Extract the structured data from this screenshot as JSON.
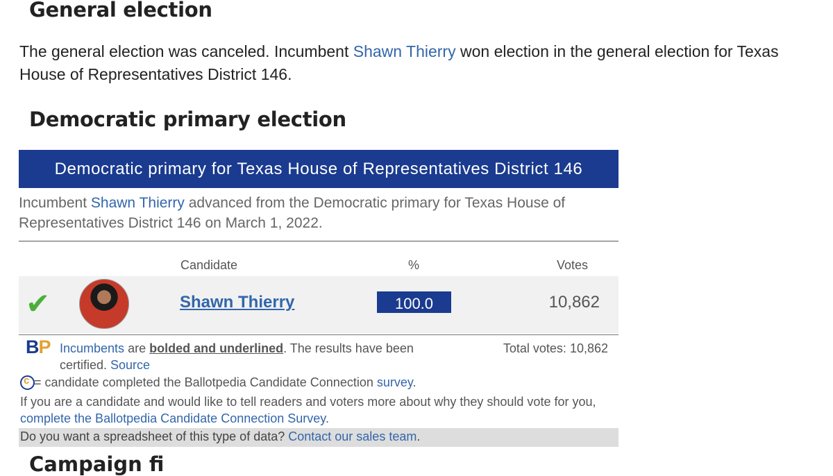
{
  "general": {
    "title": "General election",
    "text_before": "The general election was canceled. Incumbent ",
    "link": "Shawn Thierry",
    "text_after": " won election in the general election for Texas House of Representatives District 146."
  },
  "primary": {
    "title": "Democratic primary election",
    "banner": "Democratic primary for Texas House of Representatives District 146",
    "summary_before": "Incumbent ",
    "summary_link": "Shawn Thierry",
    "summary_after": " advanced from the Democratic primary for Texas House of Representatives District 146 on March 1, 2022.",
    "columns": {
      "candidate": "Candidate",
      "percent": "%",
      "votes": "Votes"
    },
    "candidate": {
      "name": "Shawn Thierry",
      "percent": "100.0",
      "percent_value": 100,
      "votes": "10,862",
      "winner_mark": "✔"
    },
    "footer": {
      "logo_b": "B",
      "logo_p": "P",
      "incumbents_link": "Incumbents",
      "are": " are ",
      "bolded": "bolded and underlined",
      "certified": ". The results have been certified. ",
      "source_link": "Source",
      "total_votes": "Total votes: 10,862",
      "cc_text": " = candidate completed the Ballotpedia Candidate Connection ",
      "survey_link": "survey",
      "cc_period": ".",
      "tell_text": "If you are a candidate and would like to tell readers and voters more about why they should vote for you, ",
      "complete_link": "complete the Ballotpedia Candidate Connection Survey",
      "tell_period": ".",
      "spreadsheet_text": "Do you want a spreadsheet of this type of data? ",
      "contact_link": "Contact our sales team",
      "contact_period": "."
    }
  },
  "next_heading_partial": "Campaign fi"
}
